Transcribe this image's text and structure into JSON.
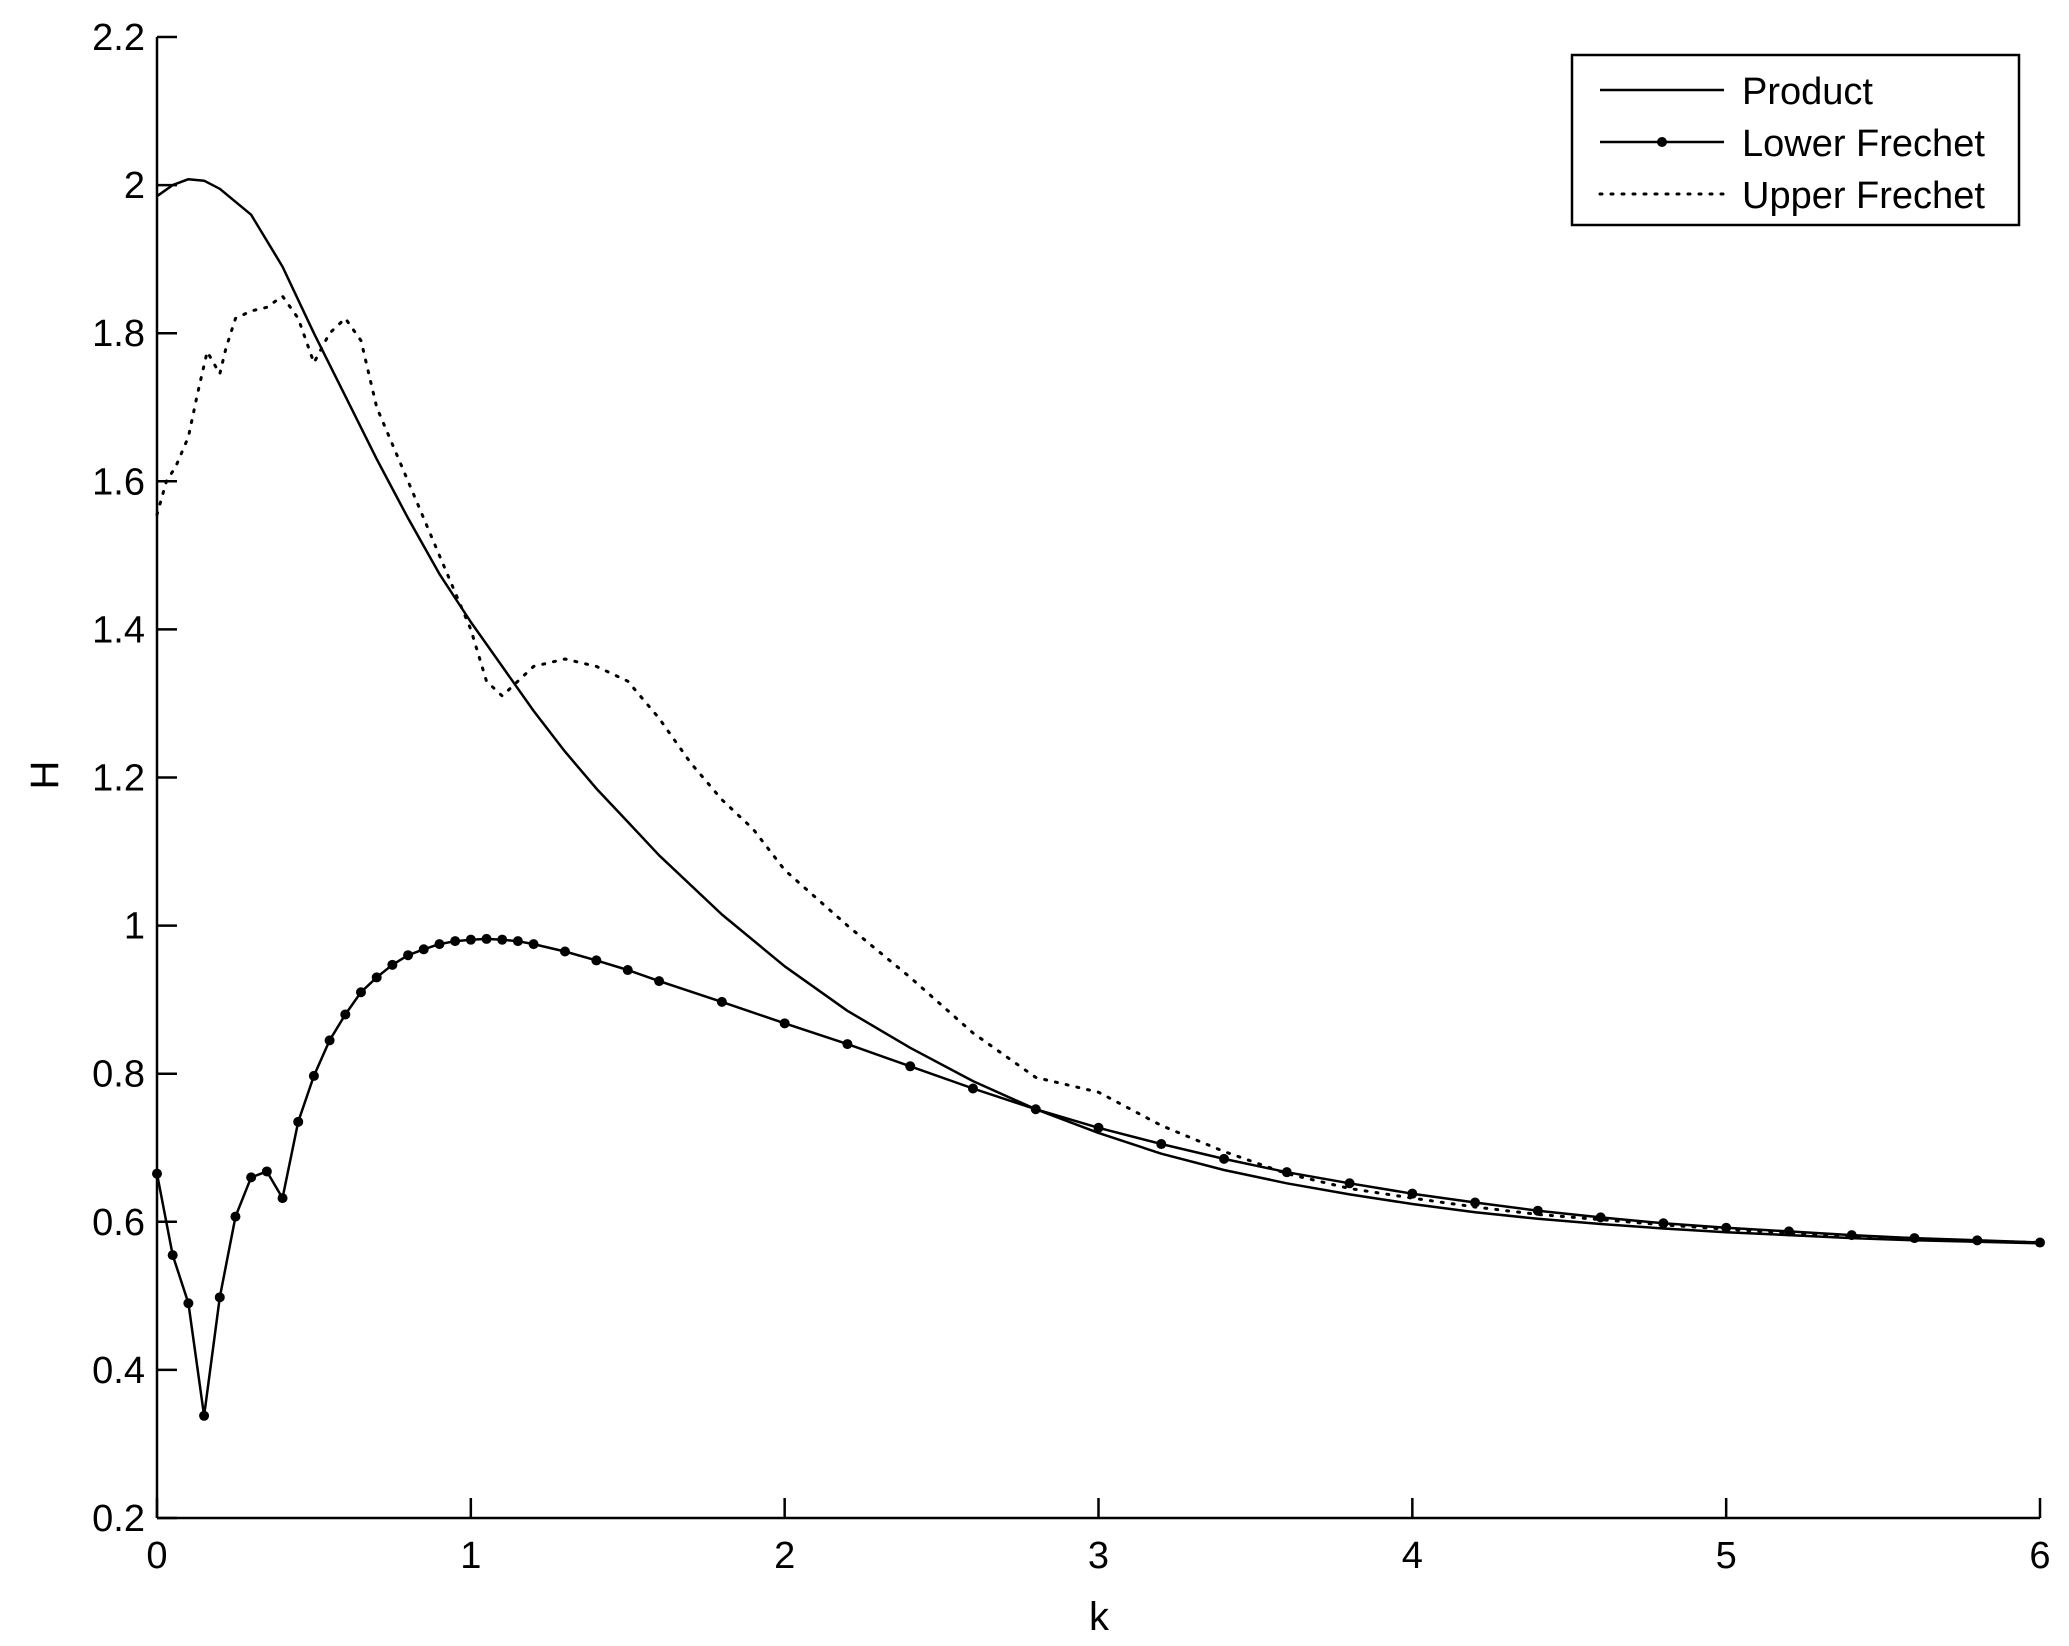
{
  "chart_data": {
    "type": "line",
    "title": "",
    "xlabel": "k",
    "ylabel": "H",
    "xlim": [
      0,
      6
    ],
    "ylim": [
      0.2,
      2.2
    ],
    "x_ticks": [
      0,
      1,
      2,
      3,
      4,
      5,
      6
    ],
    "x_tick_labels": [
      "0",
      "1",
      "2",
      "3",
      "4",
      "5",
      "6"
    ],
    "y_ticks": [
      0.2,
      0.4,
      0.6,
      0.8,
      1.0,
      1.2,
      1.4,
      1.6,
      1.8,
      2.0,
      2.2
    ],
    "y_tick_labels": [
      "0.2",
      "0.4",
      "0.6",
      "0.8",
      "1",
      "1.2",
      "1.4",
      "1.6",
      "1.8",
      "2",
      "2.2"
    ],
    "grid": false,
    "legend_position": "top-right",
    "series": [
      {
        "name": "Product",
        "style": "solid",
        "color": "#000000",
        "x": [
          0,
          0.05,
          0.1,
          0.15,
          0.2,
          0.3,
          0.4,
          0.5,
          0.6,
          0.7,
          0.8,
          0.9,
          1.0,
          1.1,
          1.2,
          1.3,
          1.4,
          1.5,
          1.6,
          1.8,
          2.0,
          2.2,
          2.4,
          2.6,
          2.8,
          3.0,
          3.2,
          3.4,
          3.6,
          3.8,
          4.0,
          4.2,
          4.4,
          4.6,
          4.8,
          5.0,
          5.2,
          5.4,
          5.6,
          5.8,
          6.0
        ],
        "y": [
          1.985,
          2.0,
          2.008,
          2.006,
          1.995,
          1.96,
          1.89,
          1.8,
          1.715,
          1.63,
          1.55,
          1.475,
          1.41,
          1.35,
          1.29,
          1.235,
          1.185,
          1.14,
          1.095,
          1.015,
          0.945,
          0.885,
          0.835,
          0.79,
          0.752,
          0.72,
          0.692,
          0.67,
          0.652,
          0.637,
          0.624,
          0.613,
          0.604,
          0.597,
          0.591,
          0.586,
          0.582,
          0.578,
          0.575,
          0.573,
          0.571
        ]
      },
      {
        "name": "Lower Frechet",
        "style": "solid-dots",
        "color": "#000000",
        "x": [
          0,
          0.05,
          0.1,
          0.15,
          0.2,
          0.25,
          0.3,
          0.35,
          0.4,
          0.45,
          0.5,
          0.55,
          0.6,
          0.65,
          0.7,
          0.75,
          0.8,
          0.85,
          0.9,
          0.95,
          1.0,
          1.05,
          1.1,
          1.15,
          1.2,
          1.3,
          1.4,
          1.5,
          1.6,
          1.8,
          2.0,
          2.2,
          2.4,
          2.6,
          2.8,
          3.0,
          3.2,
          3.4,
          3.6,
          3.8,
          4.0,
          4.2,
          4.4,
          4.6,
          4.8,
          5.0,
          5.2,
          5.4,
          5.6,
          5.8,
          6.0
        ],
        "y": [
          0.665,
          0.555,
          0.49,
          0.338,
          0.498,
          0.607,
          0.66,
          0.668,
          0.632,
          0.735,
          0.797,
          0.845,
          0.88,
          0.91,
          0.93,
          0.947,
          0.96,
          0.968,
          0.975,
          0.979,
          0.981,
          0.982,
          0.981,
          0.979,
          0.975,
          0.965,
          0.953,
          0.94,
          0.925,
          0.897,
          0.868,
          0.84,
          0.81,
          0.78,
          0.752,
          0.727,
          0.705,
          0.685,
          0.667,
          0.652,
          0.638,
          0.626,
          0.615,
          0.606,
          0.598,
          0.592,
          0.587,
          0.582,
          0.578,
          0.575,
          0.572
        ]
      },
      {
        "name": "Upper Frechet",
        "style": "dotted",
        "color": "#000000",
        "x": [
          0,
          0.03,
          0.06,
          0.1,
          0.13,
          0.16,
          0.2,
          0.22,
          0.25,
          0.3,
          0.35,
          0.4,
          0.45,
          0.5,
          0.55,
          0.6,
          0.65,
          0.7,
          0.75,
          0.8,
          0.9,
          1.0,
          1.05,
          1.1,
          1.15,
          1.2,
          1.3,
          1.4,
          1.5,
          1.6,
          1.7,
          1.8,
          1.9,
          2.0,
          2.2,
          2.4,
          2.6,
          2.8,
          3.0,
          3.2,
          3.4,
          3.6,
          3.8,
          4.0,
          4.2,
          4.4,
          4.6,
          4.8,
          5.0,
          5.2,
          5.4,
          5.6,
          5.8,
          6.0
        ],
        "y": [
          1.555,
          1.6,
          1.62,
          1.66,
          1.72,
          1.775,
          1.745,
          1.78,
          1.82,
          1.83,
          1.835,
          1.85,
          1.82,
          1.76,
          1.8,
          1.82,
          1.79,
          1.7,
          1.65,
          1.6,
          1.5,
          1.4,
          1.33,
          1.31,
          1.33,
          1.35,
          1.36,
          1.35,
          1.33,
          1.28,
          1.22,
          1.17,
          1.13,
          1.075,
          1.0,
          0.93,
          0.855,
          0.795,
          0.775,
          0.73,
          0.695,
          0.665,
          0.645,
          0.632,
          0.62,
          0.61,
          0.603,
          0.596,
          0.59,
          0.585,
          0.581,
          0.577,
          0.574,
          0.572
        ]
      }
    ]
  }
}
